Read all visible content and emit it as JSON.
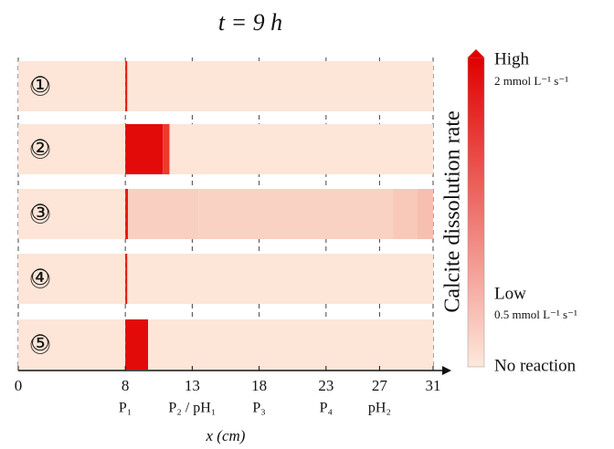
{
  "chart_data": {
    "type": "strips",
    "title": "t = 9 h",
    "x_label": "x (cm)",
    "xlim": [
      0,
      31
    ],
    "xticks": [
      0,
      8,
      13,
      18,
      23,
      27,
      31
    ],
    "xtick_sublabels": [
      {
        "value": 8,
        "label": "P₁"
      },
      {
        "value": 13,
        "label": "P₂ / pH₁"
      },
      {
        "value": 18,
        "label": "P₃"
      },
      {
        "value": 23,
        "label": "P₄"
      },
      {
        "value": 27,
        "label": "pH₂"
      }
    ],
    "grid": true,
    "series": [
      {
        "name": "①",
        "segments": [
          [
            0,
            8,
            "#fde5d7"
          ],
          [
            8,
            8.15,
            "#e8180f"
          ],
          [
            8.15,
            31,
            "#fde5d7"
          ]
        ]
      },
      {
        "name": "②",
        "segments": [
          [
            0,
            8,
            "#fde5d7"
          ],
          [
            8,
            10.8,
            "#e30a0a"
          ],
          [
            10.8,
            11.3,
            "#ec3b2c"
          ],
          [
            11.3,
            31,
            "#fde5d7"
          ]
        ]
      },
      {
        "name": "③",
        "segments": [
          [
            0,
            8,
            "#fde5d7"
          ],
          [
            8,
            8.2,
            "#e8180f"
          ],
          [
            8.2,
            13.5,
            "#f9cfc1"
          ],
          [
            13.5,
            28,
            "#f9d2c4"
          ],
          [
            28,
            29.8,
            "#f8c8b8"
          ],
          [
            29.8,
            31,
            "#f6bfae"
          ]
        ]
      },
      {
        "name": "④",
        "segments": [
          [
            0,
            8,
            "#fde5d7"
          ],
          [
            8,
            8.15,
            "#e8180f"
          ],
          [
            8.15,
            31,
            "#fde5d7"
          ]
        ]
      },
      {
        "name": "⑤",
        "segments": [
          [
            0,
            8,
            "#fde5d7"
          ],
          [
            8,
            9.7,
            "#e30a0a"
          ],
          [
            9.7,
            31,
            "#fde5d7"
          ]
        ]
      }
    ],
    "colorbar": {
      "title": "Calcite dissolution rate",
      "colors": [
        "#e00000",
        "#fde8dc"
      ],
      "high_label": "High",
      "high_unit": "2 mmol L⁻¹ s⁻¹",
      "low_label": "Low",
      "low_unit": "0.5 mmol L⁻¹ s⁻¹",
      "zero_label": "No reaction"
    }
  }
}
